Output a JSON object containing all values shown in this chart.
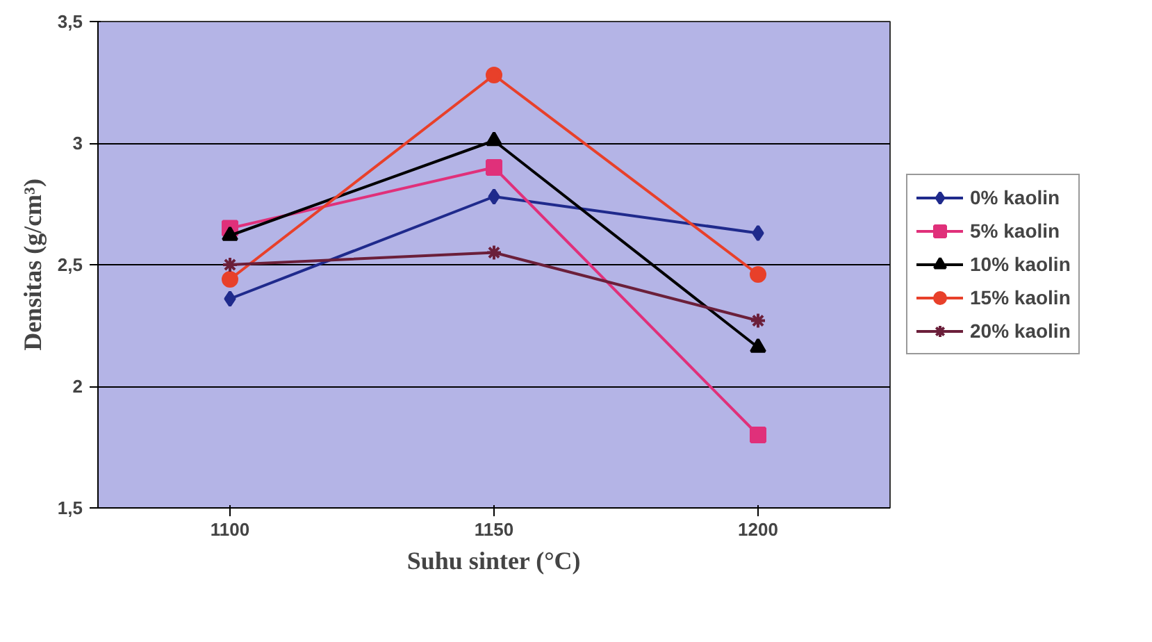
{
  "chart_data": {
    "type": "line",
    "xlabel": "Suhu sinter (°C)",
    "ylabel": "Densitas (g/cm³)",
    "categories": [
      "1100",
      "1150",
      "1200"
    ],
    "ylim": [
      1.5,
      3.5
    ],
    "yticks": [
      {
        "value": 1.5,
        "label": "1,5"
      },
      2,
      {
        "value": 2.5,
        "label": "2,5"
      },
      3,
      {
        "value": 3.5,
        "label": "3,5"
      }
    ],
    "grid": "y",
    "legend": "right",
    "line_style": "solid",
    "series": [
      {
        "name": "0% kaolin",
        "color": "#1f2a8c",
        "marker": "diamond",
        "values": [
          2.36,
          2.78,
          2.63
        ]
      },
      {
        "name": "5% kaolin",
        "color": "#e0307a",
        "marker": "square",
        "values": [
          2.65,
          2.9,
          1.8
        ]
      },
      {
        "name": "10% kaolin",
        "color": "#000000",
        "marker": "triangle",
        "values": [
          2.62,
          3.01,
          2.16
        ]
      },
      {
        "name": "15% kaolin",
        "color": "#e8402a",
        "marker": "circle",
        "values": [
          2.44,
          3.28,
          2.46
        ]
      },
      {
        "name": "20% kaolin",
        "color": "#6b1f3a",
        "marker": "cross",
        "values": [
          2.5,
          2.55,
          2.27
        ]
      }
    ]
  }
}
